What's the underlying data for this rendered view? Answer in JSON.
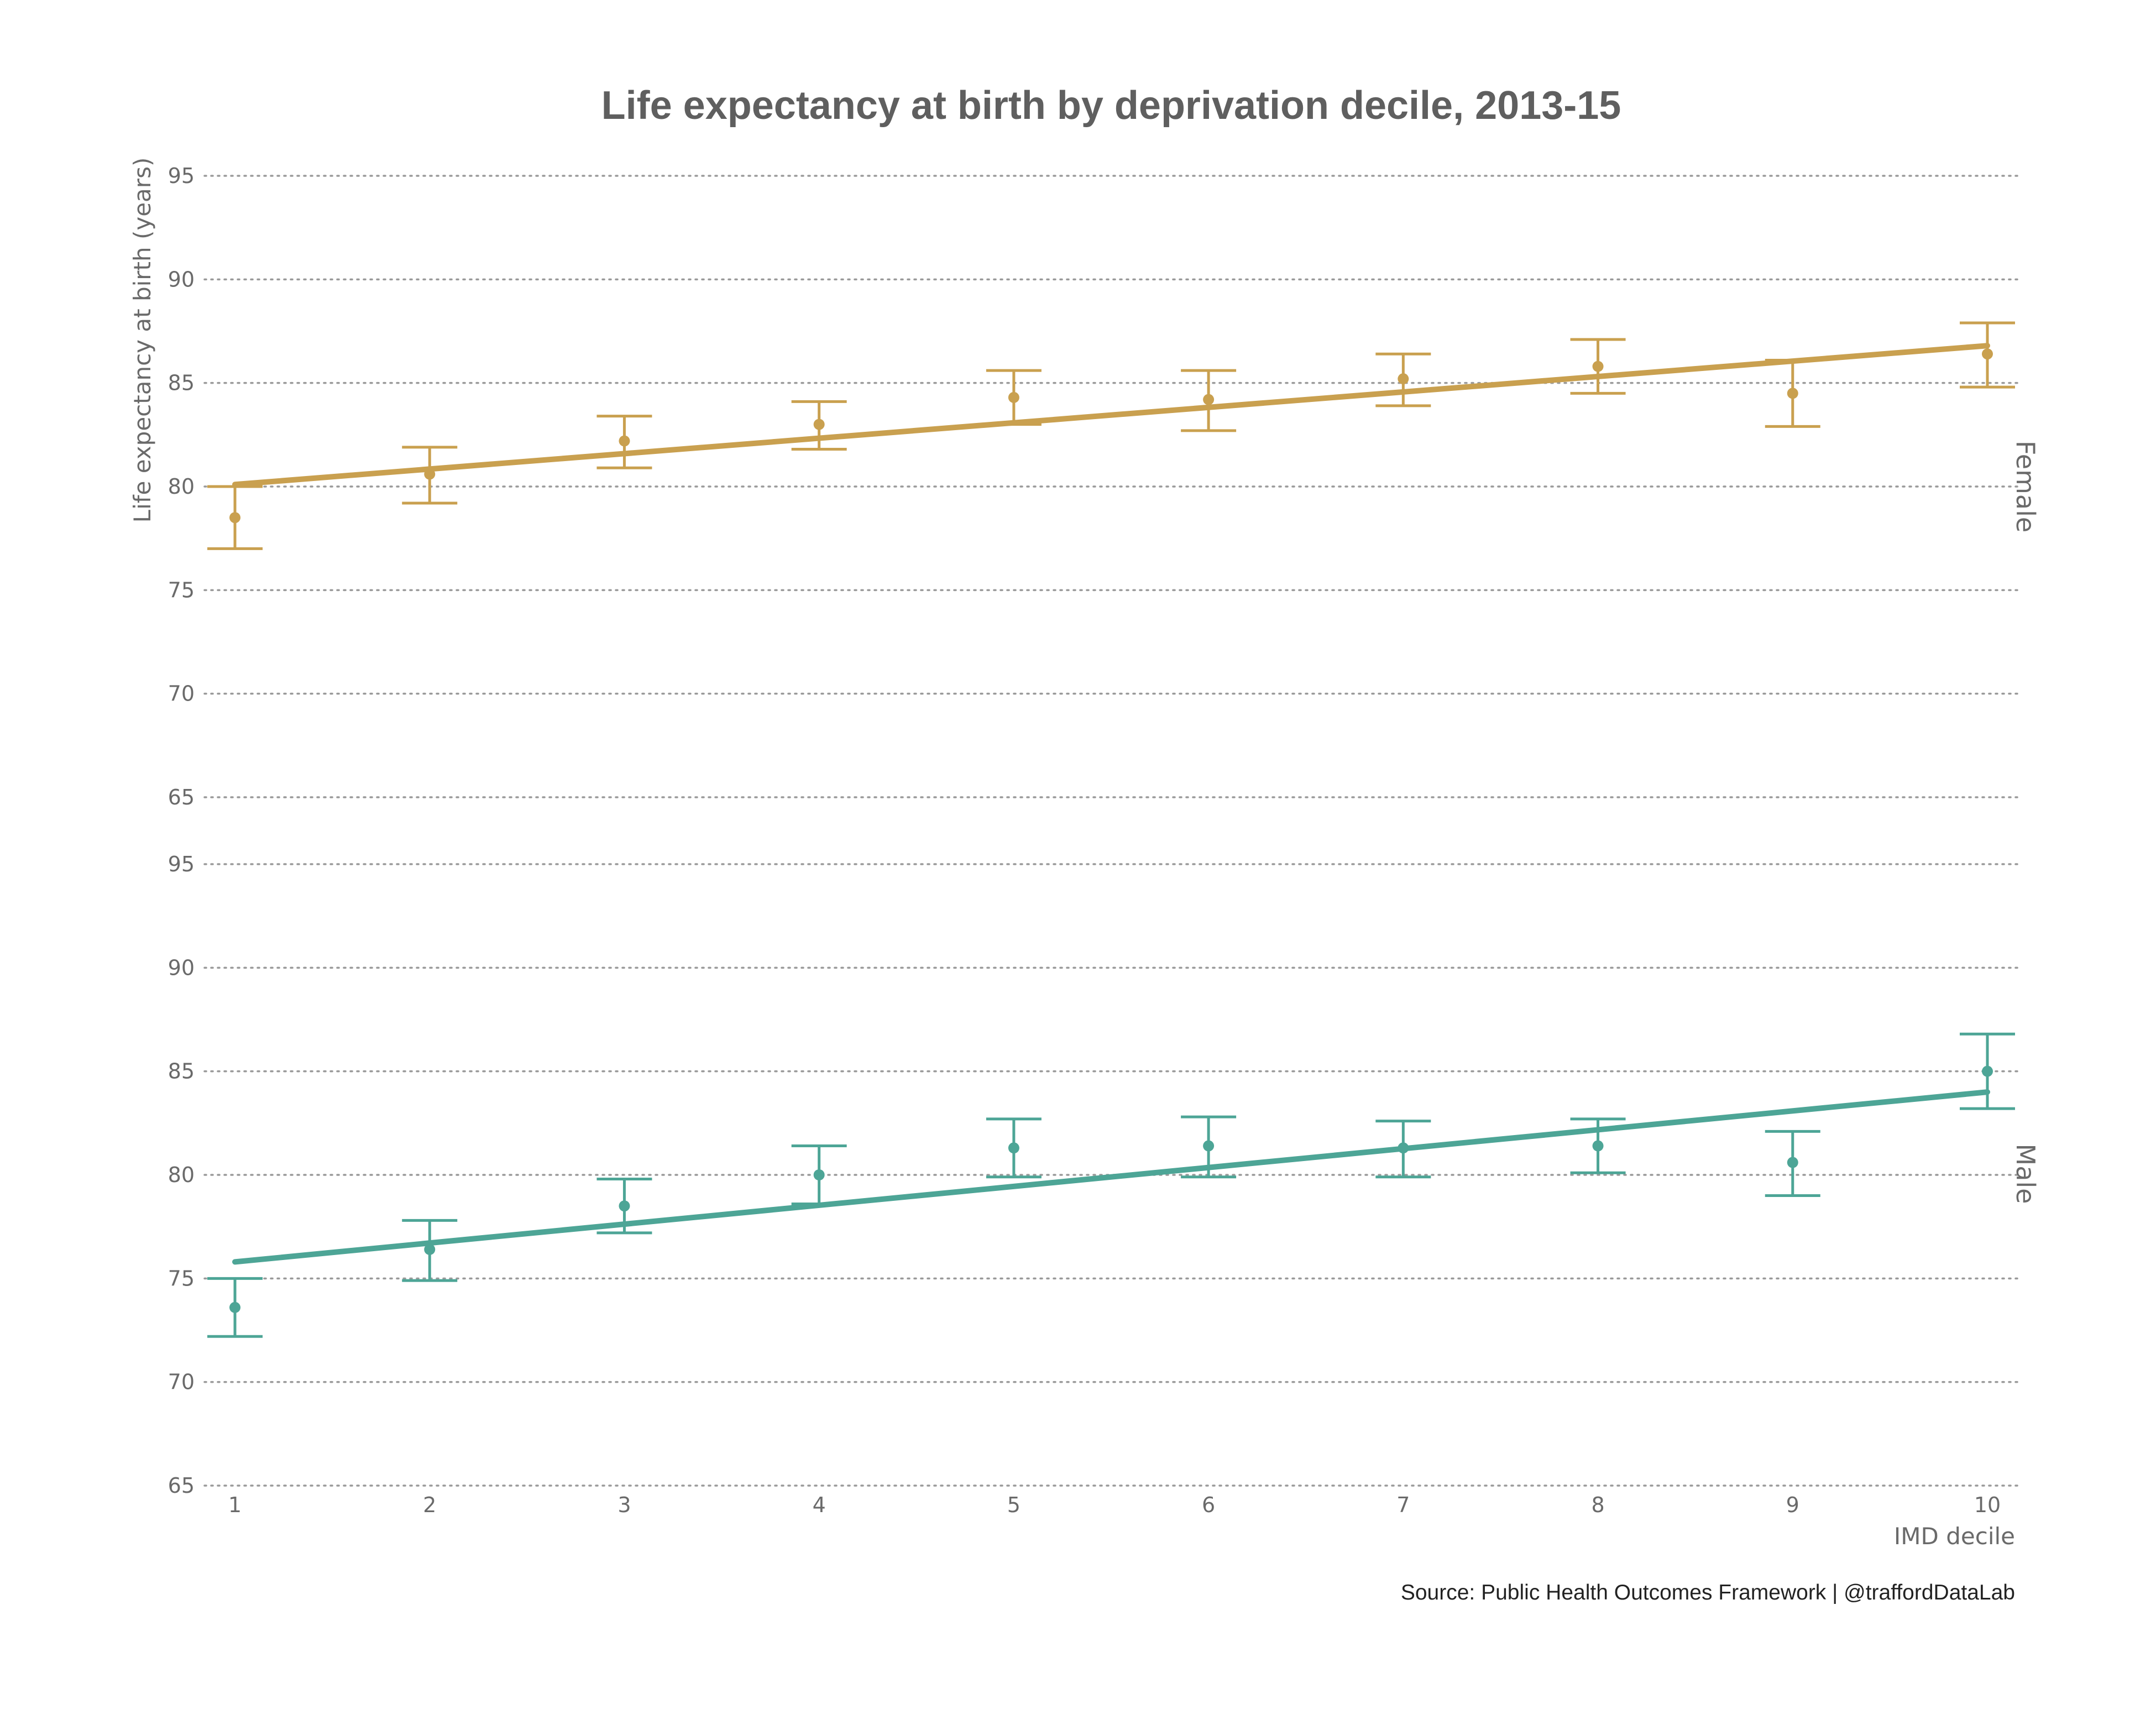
{
  "chart_data": {
    "type": "scatter",
    "title": "Life expectancy at birth by deprivation decile, 2013-15",
    "xlabel": "IMD decile",
    "ylabel": "Life expectancy at birth (years)",
    "caption": "Source: Public Health Outcomes Framework |  @traffordDataLab",
    "x": [
      1,
      2,
      3,
      4,
      5,
      6,
      7,
      8,
      9,
      10
    ],
    "x_ticks": [
      "1",
      "2",
      "3",
      "4",
      "5",
      "6",
      "7",
      "8",
      "9",
      "10"
    ],
    "ylim": [
      65,
      95
    ],
    "y_ticks": [
      "65",
      "70",
      "75",
      "80",
      "85",
      "90",
      "95"
    ],
    "grid": true,
    "legend": "none",
    "facets": [
      {
        "name": "Female",
        "color": "#C9A04F",
        "values": [
          78.5,
          80.6,
          82.2,
          83.0,
          84.3,
          84.2,
          85.2,
          85.8,
          84.5,
          86.4
        ],
        "lower": [
          77.0,
          79.2,
          80.9,
          81.8,
          83.0,
          82.7,
          83.9,
          84.5,
          82.9,
          84.8
        ],
        "upper": [
          80.0,
          81.9,
          83.4,
          84.1,
          85.6,
          85.6,
          86.4,
          87.1,
          86.1,
          87.9
        ],
        "trend": [
          80.1,
          86.8
        ]
      },
      {
        "name": "Male",
        "color": "#4DA596",
        "values": [
          73.6,
          76.4,
          78.5,
          80.0,
          81.3,
          81.4,
          81.3,
          81.4,
          80.6,
          85.0
        ],
        "lower": [
          72.2,
          74.9,
          77.2,
          78.6,
          79.9,
          79.9,
          79.9,
          80.1,
          79.0,
          83.2
        ],
        "upper": [
          75.0,
          77.8,
          79.8,
          81.4,
          82.7,
          82.8,
          82.6,
          82.7,
          82.1,
          86.8
        ],
        "trend": [
          75.8,
          84.0
        ]
      }
    ]
  }
}
